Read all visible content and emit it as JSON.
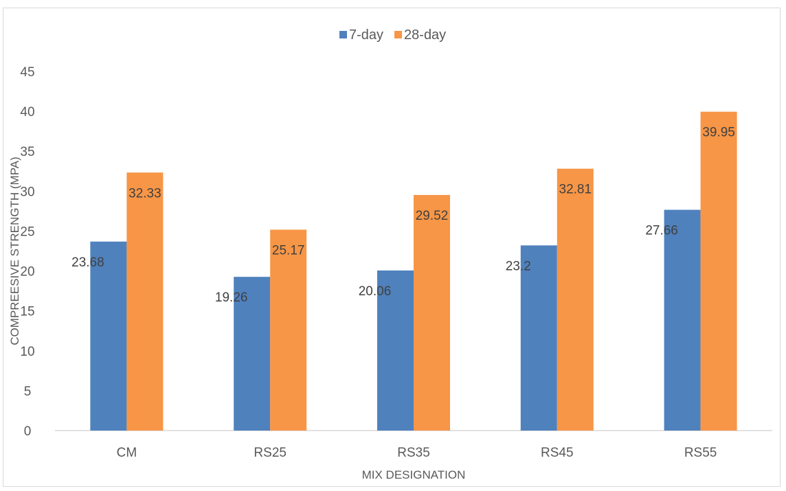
{
  "chart_data": {
    "type": "bar",
    "title": "",
    "xlabel": "MIX DESIGNATION",
    "ylabel": "COMPREESIVE STRENGTH (MPA)",
    "categories": [
      "CM",
      "RS25",
      "RS35",
      "RS45",
      "RS55"
    ],
    "ylim": [
      0,
      45
    ],
    "yticks": [
      0,
      5,
      10,
      15,
      20,
      25,
      30,
      35,
      40,
      45
    ],
    "grid": false,
    "legend_position": "top",
    "series": [
      {
        "name": "7-day",
        "color": "#4f81bd",
        "values": [
          23.68,
          19.26,
          20.06,
          23.2,
          27.66
        ],
        "labels": [
          "23.68",
          "19.26",
          "20.06",
          "23.2",
          "27.66"
        ]
      },
      {
        "name": "28-day",
        "color": "#f79646",
        "values": [
          32.33,
          25.17,
          29.52,
          32.81,
          39.95
        ],
        "labels": [
          "32.33",
          "25.17",
          "29.52",
          "32.81",
          "39.95"
        ]
      }
    ]
  }
}
